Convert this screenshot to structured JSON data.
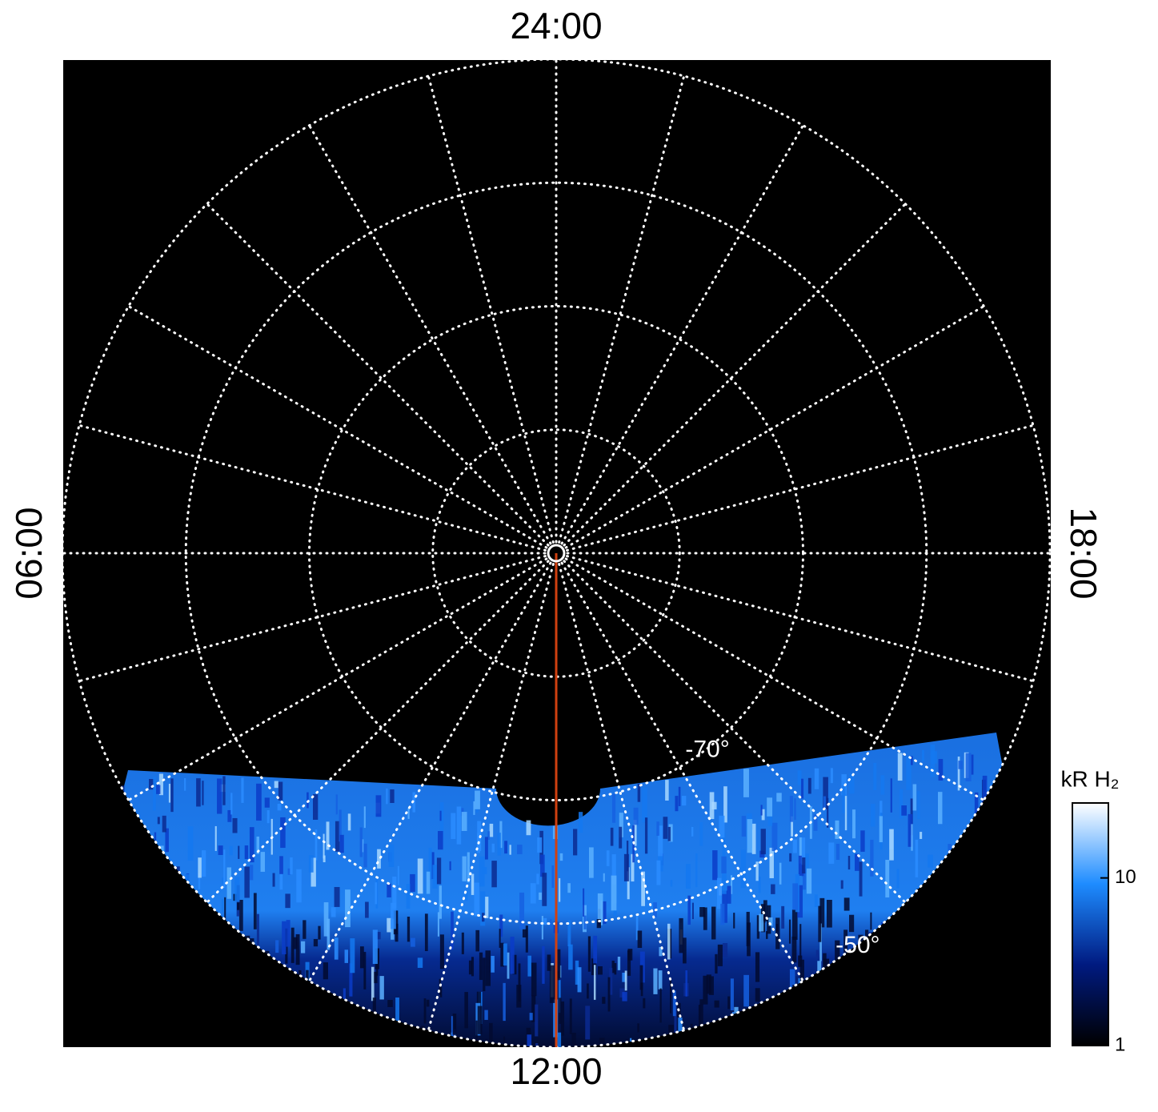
{
  "chart_data": {
    "type": "polar",
    "thetalim": [
      0,
      24
    ],
    "thetagrid_step": 1,
    "theta_ticks": [
      {
        "value": 24,
        "label": "24:00"
      },
      {
        "value": 6,
        "label": "06:00"
      },
      {
        "value": 12,
        "label": "12:00"
      },
      {
        "value": 18,
        "label": "18:00"
      }
    ],
    "rlim": [
      -90,
      -50
    ],
    "rgrid": [
      -80,
      -70,
      -60
    ],
    "r_labels": [
      {
        "value": -70,
        "label": "-70°"
      },
      {
        "value": -50,
        "label": "-50°"
      }
    ],
    "colorbar": {
      "label": "kR H₂",
      "log": true,
      "ylim": [
        1,
        28
      ],
      "yticks": [
        1,
        10
      ],
      "colors": [
        "#000000",
        "#001a80",
        "#1e8cff",
        "#ffffff"
      ]
    }
  }
}
